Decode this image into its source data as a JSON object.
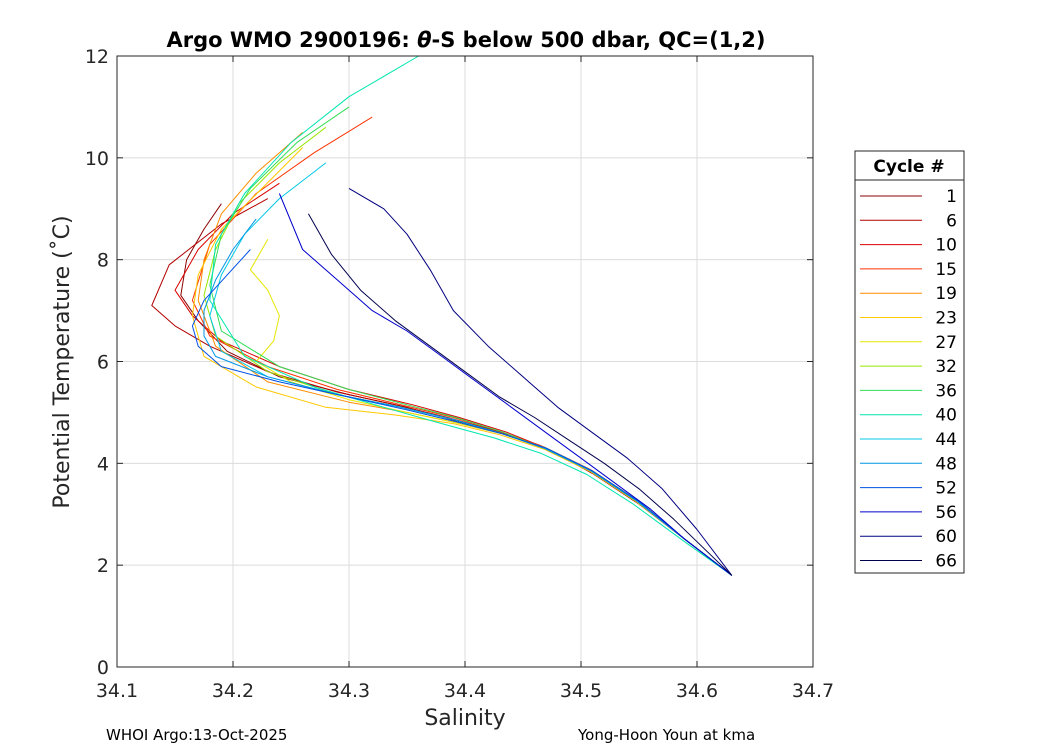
{
  "chart_data": {
    "type": "line",
    "title": "Argo WMO 2900196: θ-S below 500 dbar,  QC=(1,2)",
    "title_parts": {
      "prefix": "Argo WMO 2900196: ",
      "theta": "θ",
      "suffix": "-S below 500 dbar,  QC=(1,2)"
    },
    "xlabel": "Salinity",
    "ylabel": "Potential Temperature (˚C)",
    "xlim": [
      34.1,
      34.7
    ],
    "ylim": [
      0,
      12
    ],
    "xticks": [
      34.1,
      34.2,
      34.3,
      34.4,
      34.5,
      34.6,
      34.7
    ],
    "xtick_labels": [
      "34.1",
      "34.2",
      "34.3",
      "34.4",
      "34.5",
      "34.6",
      "34.7"
    ],
    "yticks": [
      0,
      2,
      4,
      6,
      8,
      10,
      12
    ],
    "ytick_labels": [
      "0",
      "2",
      "4",
      "6",
      "8",
      "10",
      "12"
    ],
    "grid": true,
    "legend": {
      "title": "Cycle #",
      "placement": "outside-right",
      "entries": [
        "1",
        "6",
        "10",
        "15",
        "19",
        "23",
        "27",
        "32",
        "36",
        "40",
        "44",
        "48",
        "52",
        "56",
        "60",
        "66"
      ]
    },
    "series": [
      {
        "name": "1",
        "color": "#8b0000",
        "x": [
          34.19,
          34.175,
          34.16,
          34.155,
          34.17,
          34.195,
          34.24,
          34.3,
          34.35,
          34.39,
          34.43,
          34.47,
          34.51,
          34.55,
          34.59,
          34.63
        ],
        "y": [
          9.1,
          8.6,
          8.0,
          7.3,
          6.8,
          6.2,
          5.7,
          5.35,
          5.1,
          4.85,
          4.6,
          4.3,
          3.8,
          3.2,
          2.5,
          1.8
        ]
      },
      {
        "name": "6",
        "color": "#b20000",
        "x": [
          34.23,
          34.19,
          34.145,
          34.13,
          34.15,
          34.18,
          34.23,
          34.29,
          34.34,
          34.385,
          34.425,
          34.465,
          34.505,
          34.545,
          34.59,
          34.63
        ],
        "y": [
          9.2,
          8.7,
          7.9,
          7.1,
          6.7,
          6.3,
          5.8,
          5.4,
          5.15,
          4.9,
          4.65,
          4.35,
          3.9,
          3.3,
          2.5,
          1.8
        ]
      },
      {
        "name": "10",
        "color": "#d90000",
        "x": [
          34.24,
          34.2,
          34.17,
          34.15,
          34.165,
          34.19,
          34.24,
          34.3,
          34.355,
          34.395,
          34.435,
          34.47,
          34.51,
          34.55,
          34.59,
          34.63
        ],
        "y": [
          9.5,
          8.9,
          8.2,
          7.4,
          6.9,
          6.4,
          5.9,
          5.45,
          5.15,
          4.9,
          4.62,
          4.3,
          3.85,
          3.25,
          2.5,
          1.8
        ]
      },
      {
        "name": "15",
        "color": "#ff3300",
        "x": [
          34.32,
          34.27,
          34.22,
          34.18,
          34.165,
          34.18,
          34.23,
          34.29,
          34.345,
          34.39,
          34.43,
          34.468,
          34.508,
          34.548,
          34.59,
          34.63
        ],
        "y": [
          10.8,
          10.1,
          9.3,
          8.3,
          7.2,
          6.5,
          5.9,
          5.45,
          5.15,
          4.9,
          4.63,
          4.32,
          3.88,
          3.28,
          2.5,
          1.8
        ]
      },
      {
        "name": "19",
        "color": "#ff8c00",
        "x": [
          34.26,
          34.22,
          34.19,
          34.175,
          34.17,
          34.185,
          34.23,
          34.3,
          34.35,
          34.392,
          34.432,
          34.47,
          34.51,
          34.55,
          34.59,
          34.63
        ],
        "y": [
          10.5,
          9.7,
          8.9,
          8.0,
          7.2,
          6.3,
          5.6,
          5.2,
          5.0,
          4.8,
          4.58,
          4.3,
          3.85,
          3.25,
          2.5,
          1.8
        ]
      },
      {
        "name": "23",
        "color": "#ffc800",
        "x": [
          34.26,
          34.225,
          34.19,
          34.17,
          34.165,
          34.175,
          34.22,
          34.28,
          34.34,
          34.39,
          34.43,
          34.468,
          34.508,
          34.548,
          34.59,
          34.63
        ],
        "y": [
          10.2,
          9.4,
          8.6,
          7.7,
          6.9,
          6.1,
          5.5,
          5.1,
          4.95,
          4.78,
          4.56,
          4.28,
          3.84,
          3.24,
          2.5,
          1.8
        ]
      },
      {
        "name": "27",
        "color": "#e6e600",
        "x": [
          34.23,
          34.215,
          34.23,
          34.24,
          34.235,
          34.22,
          34.25,
          34.3,
          34.35,
          34.392,
          34.432,
          34.47,
          34.51,
          34.55,
          34.59,
          34.63
        ],
        "y": [
          8.4,
          7.8,
          7.4,
          6.9,
          6.4,
          6.0,
          5.6,
          5.25,
          5.0,
          4.8,
          4.58,
          4.3,
          3.85,
          3.25,
          2.5,
          1.8
        ]
      },
      {
        "name": "32",
        "color": "#99e600",
        "x": [
          34.28,
          34.24,
          34.205,
          34.185,
          34.175,
          34.185,
          34.23,
          34.29,
          34.345,
          34.39,
          34.43,
          34.468,
          34.508,
          34.548,
          34.59,
          34.63
        ],
        "y": [
          10.6,
          9.9,
          9.1,
          8.2,
          7.3,
          6.5,
          5.8,
          5.35,
          5.1,
          4.86,
          4.6,
          4.3,
          3.86,
          3.26,
          2.5,
          1.8
        ]
      },
      {
        "name": "36",
        "color": "#33dd55",
        "x": [
          34.3,
          34.255,
          34.215,
          34.19,
          34.18,
          34.19,
          34.24,
          34.3,
          34.35,
          34.392,
          34.432,
          34.468,
          34.508,
          34.548,
          34.59,
          34.63
        ],
        "y": [
          11.0,
          10.3,
          9.4,
          8.5,
          7.5,
          6.6,
          5.9,
          5.45,
          5.15,
          4.9,
          4.62,
          4.3,
          3.86,
          3.26,
          2.5,
          1.8
        ]
      },
      {
        "name": "40",
        "color": "#00e6b0",
        "x": [
          34.36,
          34.3,
          34.25,
          34.21,
          34.185,
          34.18,
          34.21,
          34.27,
          34.33,
          34.38,
          34.425,
          34.465,
          34.505,
          34.545,
          34.59,
          34.63
        ],
        "y": [
          12.0,
          11.2,
          10.3,
          9.3,
          8.3,
          7.2,
          6.1,
          5.5,
          5.1,
          4.78,
          4.5,
          4.2,
          3.78,
          3.2,
          2.45,
          1.8
        ]
      },
      {
        "name": "44",
        "color": "#00c8e6",
        "x": [
          34.28,
          34.24,
          34.21,
          34.19,
          34.18,
          34.19,
          34.23,
          34.29,
          34.345,
          34.39,
          34.43,
          34.468,
          34.508,
          34.548,
          34.59,
          34.63
        ],
        "y": [
          9.9,
          9.2,
          8.5,
          7.7,
          6.9,
          6.2,
          5.7,
          5.35,
          5.1,
          4.86,
          4.6,
          4.3,
          3.86,
          3.26,
          2.5,
          1.8
        ]
      },
      {
        "name": "48",
        "color": "#0096e6",
        "x": [
          34.22,
          34.2,
          34.185,
          34.175,
          34.175,
          34.185,
          34.23,
          34.29,
          34.345,
          34.39,
          34.43,
          34.468,
          34.508,
          34.548,
          34.59,
          34.63
        ],
        "y": [
          8.8,
          8.2,
          7.6,
          7.0,
          6.5,
          6.1,
          5.7,
          5.35,
          5.1,
          4.86,
          4.6,
          4.3,
          3.86,
          3.26,
          2.5,
          1.8
        ]
      },
      {
        "name": "52",
        "color": "#0050e6",
        "x": [
          34.215,
          34.195,
          34.175,
          34.165,
          34.17,
          34.19,
          34.24,
          34.3,
          34.35,
          34.392,
          34.432,
          34.47,
          34.51,
          34.55,
          34.59,
          34.63
        ],
        "y": [
          8.2,
          7.7,
          7.2,
          6.7,
          6.3,
          5.9,
          5.6,
          5.3,
          5.05,
          4.82,
          4.58,
          4.3,
          3.85,
          3.25,
          2.5,
          1.8
        ]
      },
      {
        "name": "56",
        "color": "#0000cc",
        "x": [
          34.24,
          34.26,
          34.29,
          34.32,
          34.35,
          34.38,
          34.41,
          34.44,
          34.47,
          34.5,
          34.53,
          34.56,
          34.59,
          34.63
        ],
        "y": [
          9.3,
          8.2,
          7.6,
          7.0,
          6.6,
          6.1,
          5.6,
          5.1,
          4.6,
          4.1,
          3.6,
          3.1,
          2.5,
          1.8
        ]
      },
      {
        "name": "60",
        "color": "#000080",
        "x": [
          34.3,
          34.33,
          34.35,
          34.37,
          34.39,
          34.42,
          34.45,
          34.48,
          34.51,
          34.54,
          34.57,
          34.6,
          34.63
        ],
        "y": [
          9.4,
          9.0,
          8.5,
          7.8,
          7.0,
          6.3,
          5.7,
          5.1,
          4.6,
          4.1,
          3.5,
          2.7,
          1.8
        ]
      },
      {
        "name": "66",
        "color": "#00004d",
        "x": [
          34.265,
          34.285,
          34.31,
          34.34,
          34.37,
          34.4,
          34.43,
          34.46,
          34.49,
          34.52,
          34.55,
          34.58,
          34.605,
          34.63
        ],
        "y": [
          8.9,
          8.1,
          7.4,
          6.8,
          6.3,
          5.8,
          5.3,
          4.9,
          4.45,
          4.0,
          3.5,
          2.9,
          2.35,
          1.8
        ]
      }
    ]
  },
  "footer": {
    "left": "WHOI Argo:13-Oct-2025",
    "right": "Yong-Hoon Youn at kma"
  }
}
